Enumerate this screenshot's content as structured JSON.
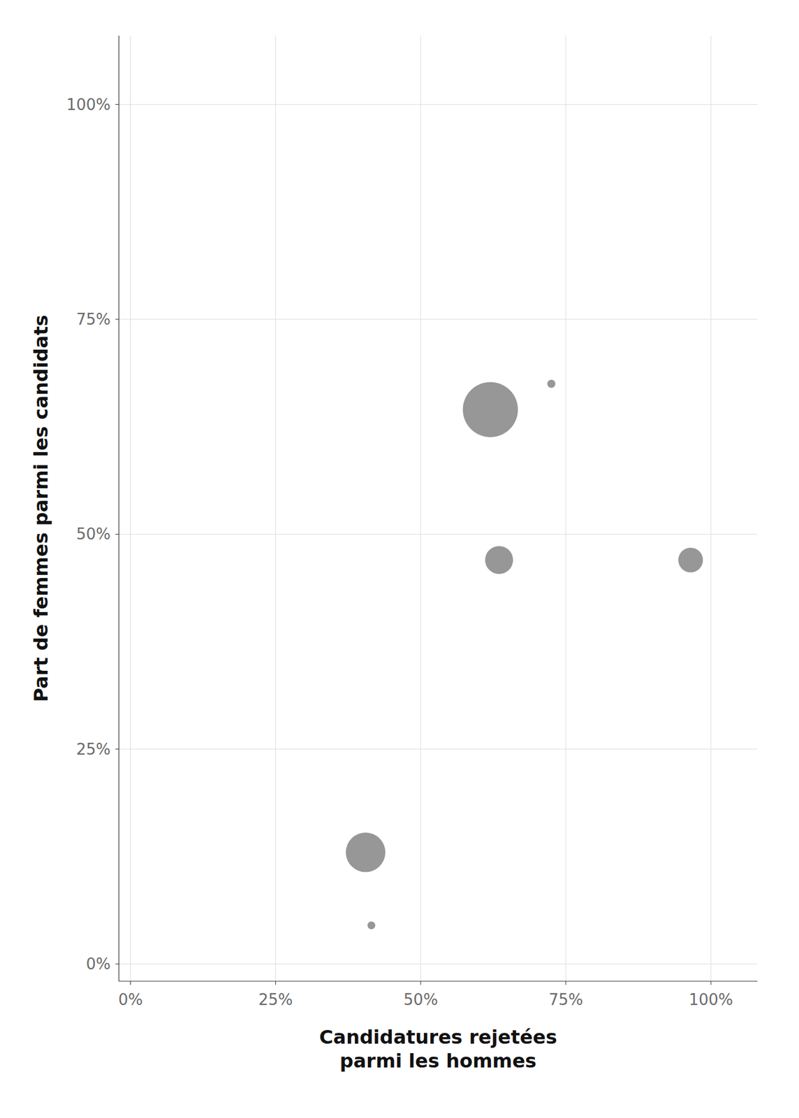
{
  "chart_data": {
    "type": "scatter",
    "xlabel": "Candidatures rejetées\nparmi les hommes",
    "ylabel": "Part de femmes parmi les candidats",
    "x": [
      0.62,
      0.725,
      0.635,
      0.965,
      0.405,
      0.415
    ],
    "values": [
      0.645,
      0.675,
      0.47,
      0.47,
      0.13,
      0.045
    ],
    "sizes": [
      3500,
      75,
      900,
      700,
      1800,
      70
    ],
    "color": "#7a7a7a",
    "xlim": [
      -0.02,
      1.08
    ],
    "ylim": [
      -0.02,
      1.08
    ],
    "xticks": [
      {
        "value": 0,
        "label": "0%"
      },
      {
        "value": 0.25,
        "label": "25%"
      },
      {
        "value": 0.5,
        "label": "50%"
      },
      {
        "value": 0.75,
        "label": "75%"
      },
      {
        "value": 1.0,
        "label": "100%"
      }
    ],
    "yticks": [
      {
        "value": 0,
        "label": "0%"
      },
      {
        "value": 0.25,
        "label": "25%"
      },
      {
        "value": 0.5,
        "label": "50%"
      },
      {
        "value": 0.75,
        "label": "75%"
      },
      {
        "value": 1.0,
        "label": "100%"
      }
    ],
    "grid": true
  }
}
